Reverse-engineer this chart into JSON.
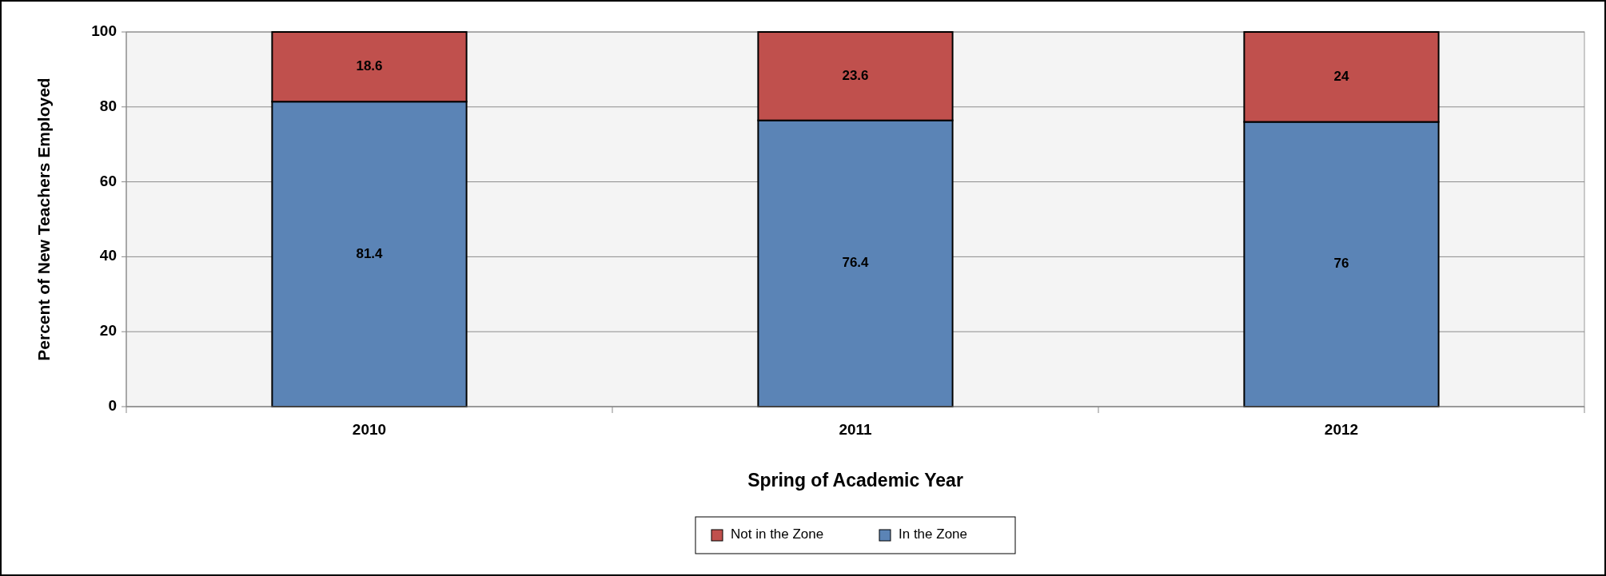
{
  "chart_data": {
    "type": "bar",
    "xlabel": "Spring of Academic Year",
    "ylabel": "Percent of New Teachers Employed",
    "categories": [
      "2010",
      "2011",
      "2012"
    ],
    "series": [
      {
        "name": "In the Zone",
        "color": "#5b84b6",
        "values": [
          81.4,
          76.4,
          76
        ]
      },
      {
        "name": "Not in the Zone",
        "color": "#c0504d",
        "values": [
          18.6,
          23.6,
          24
        ]
      }
    ],
    "stacked": true,
    "ylim": [
      0,
      100
    ],
    "yticks": [
      0,
      20,
      40,
      60,
      80,
      100
    ],
    "grid": "y",
    "legend": "bottom",
    "data_labels": true
  }
}
